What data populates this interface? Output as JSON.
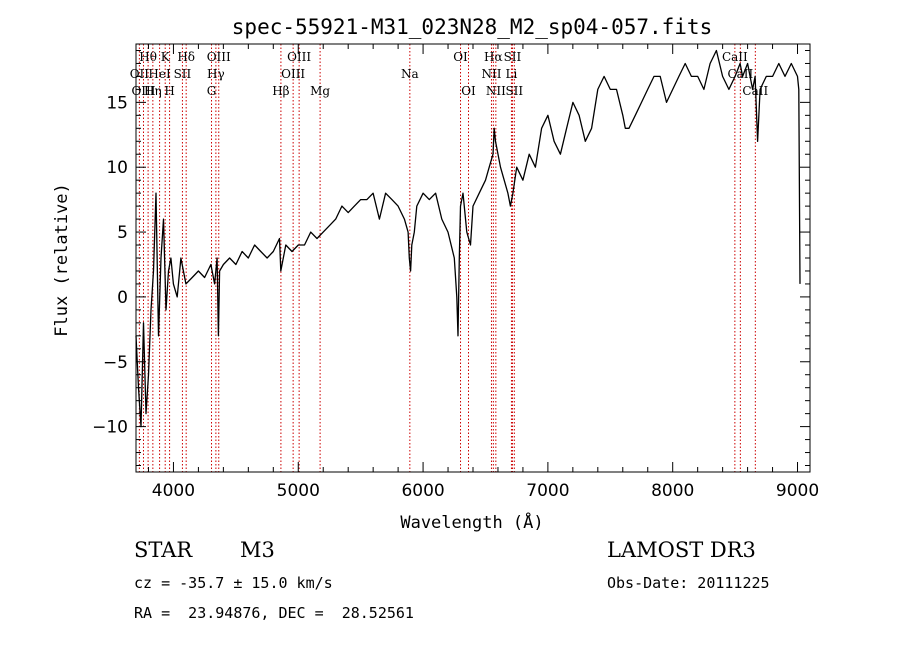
{
  "chart_data": {
    "type": "line",
    "title": "spec-55921-M31_023N28_M2_sp04-057.fits",
    "xlabel": "Wavelength (Å)",
    "ylabel": "Flux (relative)",
    "xlim": [
      3700,
      9100
    ],
    "ylim": [
      -13.5,
      19.5
    ],
    "xticks": [
      4000,
      5000,
      6000,
      7000,
      8000,
      9000
    ],
    "yticks": [
      -10,
      -5,
      0,
      5,
      10,
      15
    ],
    "xtick_labels": [
      "4000",
      "5000",
      "6000",
      "7000",
      "8000",
      "9000"
    ],
    "ytick_labels": [
      "−10",
      "−5",
      "0",
      "5",
      "10",
      "15"
    ],
    "series": [
      {
        "name": "spectrum",
        "x": [
          3700,
          3720,
          3740,
          3760,
          3780,
          3800,
          3820,
          3840,
          3860,
          3880,
          3900,
          3920,
          3940,
          3960,
          3980,
          4000,
          4030,
          4060,
          4100,
          4150,
          4200,
          4250,
          4300,
          4330,
          4350,
          4360,
          4370,
          4400,
          4450,
          4500,
          4550,
          4600,
          4650,
          4700,
          4750,
          4800,
          4850,
          4860,
          4900,
          4950,
          5000,
          5050,
          5100,
          5150,
          5200,
          5250,
          5300,
          5350,
          5400,
          5450,
          5500,
          5550,
          5600,
          5650,
          5700,
          5750,
          5800,
          5850,
          5880,
          5890,
          5900,
          5910,
          5930,
          5950,
          6000,
          6050,
          6100,
          6150,
          6200,
          6250,
          6270,
          6280,
          6290,
          6300,
          6320,
          6350,
          6380,
          6400,
          6450,
          6500,
          6530,
          6560,
          6570,
          6580,
          6600,
          6620,
          6650,
          6680,
          6700,
          6720,
          6750,
          6800,
          6850,
          6900,
          6950,
          7000,
          7050,
          7100,
          7150,
          7200,
          7250,
          7300,
          7350,
          7400,
          7450,
          7500,
          7550,
          7600,
          7620,
          7650,
          7700,
          7750,
          7800,
          7850,
          7900,
          7950,
          8000,
          8050,
          8100,
          8150,
          8200,
          8250,
          8300,
          8350,
          8400,
          8450,
          8500,
          8540,
          8560,
          8600,
          8640,
          8660,
          8680,
          8700,
          8750,
          8800,
          8850,
          8900,
          8950,
          9000,
          9010,
          9020
        ],
        "values": [
          -3,
          -7,
          -10,
          -2,
          -9,
          -6,
          -1,
          2,
          8,
          -3,
          3,
          6,
          -1,
          2,
          3,
          1,
          0,
          3,
          1,
          1.5,
          2,
          1.5,
          2.5,
          1,
          3,
          -3,
          2,
          2.5,
          3,
          2.5,
          3.5,
          3,
          4,
          3.5,
          3,
          3.5,
          4.5,
          2,
          4,
          3.5,
          4,
          4,
          5,
          4.5,
          5,
          5.5,
          6,
          7,
          6.5,
          7,
          7.5,
          7.5,
          8,
          6,
          8,
          7.5,
          7,
          6,
          5,
          3,
          2,
          4,
          5,
          7,
          8,
          7.5,
          8,
          6,
          5,
          3,
          0,
          -3,
          3,
          7,
          8,
          5,
          4,
          7,
          8,
          9,
          10,
          11,
          13,
          12,
          11,
          10,
          9,
          8,
          7,
          8,
          10,
          9,
          11,
          10,
          13,
          14,
          12,
          11,
          13,
          15,
          14,
          12,
          13,
          16,
          17,
          16,
          16,
          14,
          13,
          13,
          14,
          15,
          16,
          17,
          17,
          15,
          16,
          17,
          18,
          17,
          17,
          16,
          18,
          19,
          17,
          16,
          17,
          18,
          17,
          18,
          16,
          17,
          12,
          16,
          17,
          17,
          18,
          17,
          18,
          17,
          16,
          1
        ]
      }
    ],
    "emission_lines": [
      {
        "label": "Hθ",
        "x": 3797,
        "row": 1
      },
      {
        "label": "OII",
        "x": 3727,
        "row": 2
      },
      {
        "label": "OIII",
        "x": 3760,
        "row": 3
      },
      {
        "label": "HeI",
        "x": 3889,
        "row": 2
      },
      {
        "label": "Hη",
        "x": 3835,
        "row": 3
      },
      {
        "label": "K",
        "x": 3934,
        "row": 1
      },
      {
        "label": "H",
        "x": 3969,
        "row": 3
      },
      {
        "label": "SII",
        "x": 4072,
        "row": 2
      },
      {
        "label": "Hδ",
        "x": 4102,
        "row": 1
      },
      {
        "label": "OIII",
        "x": 4363,
        "row": 1
      },
      {
        "label": "Hγ",
        "x": 4340,
        "row": 2
      },
      {
        "label": "G",
        "x": 4305,
        "row": 3
      },
      {
        "label": "Hβ",
        "x": 4861,
        "row": 3
      },
      {
        "label": "OIII",
        "x": 4959,
        "row": 2
      },
      {
        "label": "OIII",
        "x": 5007,
        "row": 1
      },
      {
        "label": "Mg",
        "x": 5175,
        "row": 3
      },
      {
        "label": "Na",
        "x": 5894,
        "row": 2
      },
      {
        "label": "OI",
        "x": 6300,
        "row": 1
      },
      {
        "label": "OI",
        "x": 6364,
        "row": 3
      },
      {
        "label": "NII",
        "x": 6548,
        "row": 2
      },
      {
        "label": "NII",
        "x": 6583,
        "row": 3
      },
      {
        "label": "Hα",
        "x": 6563,
        "row": 1
      },
      {
        "label": "SII",
        "x": 6716,
        "row": 1
      },
      {
        "label": "SII",
        "x": 6731,
        "row": 3
      },
      {
        "label": "Li",
        "x": 6708,
        "row": 2
      },
      {
        "label": "CaII",
        "x": 8498,
        "row": 1
      },
      {
        "label": "CaII",
        "x": 8542,
        "row": 2
      },
      {
        "label": "CaII",
        "x": 8662,
        "row": 3
      }
    ]
  },
  "info": {
    "class_label": "STAR",
    "subclass": "M3",
    "survey": "LAMOST DR3",
    "cz": "cz = -35.7 ± 15.0 km/s",
    "obs_date": "Obs-Date: 20111225",
    "coords": "RA =  23.94876, DEC =  28.52561"
  },
  "colors": {
    "line": "#000000",
    "emission_marker": "#cc0000"
  }
}
